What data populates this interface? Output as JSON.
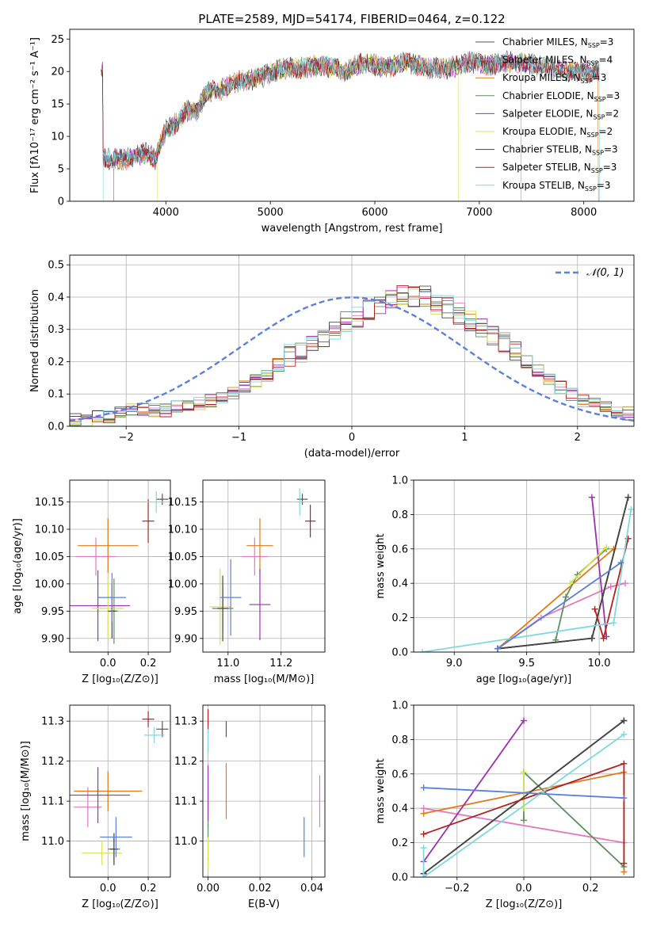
{
  "figure": {
    "title": "PLATE=2589, MJD=54174, FIBERID=0464, z=0.122"
  },
  "colors": {
    "Chabrier MILES": "#555555",
    "Salpeter MILES": "#e377c2",
    "Kroupa MILES": "#e07b1a",
    "Chabrier ELODIE": "#5d8f5d",
    "Salpeter ELODIE": "#9b30b0",
    "Kroupa ELODIE": "#d7e35a",
    "Chabrier STELIB": "#444444",
    "Salpeter STELIB": "#b22222",
    "Kroupa STELIB": "#7fd8df",
    "blue": "#5b7fdc"
  },
  "chart_data": [
    {
      "id": "spectrum",
      "type": "line",
      "title": "PLATE=2589, MJD=54174, FIBERID=0464, z=0.122",
      "xlabel": "wavelength [Angstrom, rest frame]",
      "ylabel": "Flux [fλ10⁻¹⁷ erg cm⁻² s⁻¹ A⁻¹]",
      "xlim": [
        3080,
        8480
      ],
      "ylim": [
        0,
        26.5
      ],
      "xticks": [
        4000,
        5000,
        6000,
        7000,
        8000
      ],
      "yticks": [
        0,
        5,
        10,
        15,
        20,
        25
      ],
      "legend_position": "top-right",
      "series": [
        {
          "name": "Chabrier MILES, N$_{SSP}$=3"
        },
        {
          "name": "Salpeter MILES, N$_{SSP}$=4"
        },
        {
          "name": "Kroupa MILES, N$_{SSP}$=3"
        },
        {
          "name": "Chabrier ELODIE, N$_{SSP}$=3"
        },
        {
          "name": "Salpeter ELODIE, N$_{SSP}$=2"
        },
        {
          "name": "Kroupa ELODIE, N$_{SSP}$=2"
        },
        {
          "name": "Chabrier STELIB, N$_{SSP}$=3"
        },
        {
          "name": "Salpeter STELIB, N$_{SSP}$=3"
        },
        {
          "name": "Kroupa STELIB, N$_{SSP}$=3"
        }
      ],
      "envelope": {
        "x": [
          3400,
          3600,
          3800,
          3900,
          4000,
          4100,
          4200,
          4300,
          4400,
          4500,
          4700,
          4900,
          5100,
          5300,
          5500,
          5700,
          5900,
          6100,
          6300,
          6500,
          6700,
          6900,
          7100,
          7300,
          7500,
          7700,
          7900,
          8150
        ],
        "y": [
          6.5,
          6.5,
          7.5,
          6.5,
          11.0,
          12.0,
          14.0,
          14.0,
          17.0,
          17.0,
          18.5,
          19.0,
          20.5,
          20.5,
          21.0,
          20.0,
          21.5,
          20.5,
          21.5,
          20.5,
          20.5,
          21.5,
          21.0,
          21.5,
          21.0,
          20.5,
          20.0,
          20.0
        ]
      }
    },
    {
      "id": "residuals",
      "type": "histogram",
      "xlabel": "(data-model)/error",
      "ylabel": "Normed distribution",
      "xlim": [
        -2.5,
        2.5
      ],
      "ylim": [
        0,
        0.53
      ],
      "xticks": [
        -2,
        -1,
        0,
        1,
        2
      ],
      "yticks": [
        0.0,
        0.1,
        0.2,
        0.3,
        0.4,
        0.5
      ],
      "reference_curve": {
        "name": "N(0,1)",
        "mean": 0,
        "sigma": 1
      },
      "legend_position": "top-right",
      "bins": {
        "start": -2.5,
        "width": 0.1,
        "count": 50
      },
      "base_heights": [
        0.02,
        0.02,
        0.03,
        0.03,
        0.04,
        0.05,
        0.05,
        0.05,
        0.05,
        0.06,
        0.06,
        0.07,
        0.08,
        0.09,
        0.1,
        0.12,
        0.14,
        0.16,
        0.19,
        0.22,
        0.23,
        0.25,
        0.27,
        0.29,
        0.32,
        0.34,
        0.36,
        0.37,
        0.39,
        0.41,
        0.4,
        0.4,
        0.38,
        0.37,
        0.35,
        0.33,
        0.31,
        0.28,
        0.26,
        0.23,
        0.2,
        0.17,
        0.15,
        0.12,
        0.1,
        0.08,
        0.07,
        0.06,
        0.05,
        0.04
      ]
    },
    {
      "id": "age-vs-Z",
      "type": "errorbar",
      "xlabel": "Z [log₁₀(Z/Z⊙)]",
      "ylabel": "age  [log₁₀(age/yr)]",
      "xlim": [
        -0.19,
        0.31
      ],
      "ylim": [
        9.875,
        10.19
      ],
      "xticks": [
        0.0,
        0.2
      ],
      "yticks": [
        9.9,
        9.95,
        10.0,
        10.05,
        10.1,
        10.15
      ],
      "points": [
        {
          "series": "Chabrier MILES",
          "x": 0.27,
          "y": 10.155,
          "xerr": 0.03,
          "yerr": 0.01
        },
        {
          "series": "Salpeter MILES",
          "x": -0.06,
          "y": 10.05,
          "xerr": 0.1,
          "yerr": 0.035
        },
        {
          "series": "Kroupa MILES",
          "x": 0.0,
          "y": 10.07,
          "xerr": 0.15,
          "yerr": 0.05
        },
        {
          "series": "Chabrier ELODIE",
          "x": 0.03,
          "y": 9.95,
          "xerr": 0.02,
          "yerr": 0.06
        },
        {
          "series": "Salpeter ELODIE",
          "x": -0.05,
          "y": 9.96,
          "xerr": 0.16,
          "yerr": 0.065
        },
        {
          "series": "Kroupa ELODIE",
          "x": 0.0,
          "y": 9.955,
          "xerr": 0.08,
          "yerr": 0.055
        },
        {
          "series": "Chabrier STELIB",
          "x": 0.02,
          "y": 9.95,
          "xerr": 0.02,
          "yerr": 0.05
        },
        {
          "series": "Salpeter STELIB",
          "x": 0.2,
          "y": 10.115,
          "xerr": 0.03,
          "yerr": 0.04
        },
        {
          "series": "Kroupa STELIB",
          "x": 0.24,
          "y": 10.15,
          "xerr": 0.05,
          "yerr": 0.02
        },
        {
          "series": "blue",
          "x": 0.02,
          "y": 9.975,
          "xerr": 0.07,
          "yerr": 0.045
        }
      ]
    },
    {
      "id": "age-vs-mass",
      "type": "errorbar",
      "xlabel": "mass [log₁₀(M/M⊙)]",
      "ylabel": "",
      "xlim": [
        10.905,
        11.365
      ],
      "ylim": [
        9.875,
        10.19
      ],
      "xticks": [
        11.0,
        11.2
      ],
      "yticks": [
        9.9,
        9.95,
        10.0,
        10.05,
        10.1,
        10.15
      ],
      "points": [
        {
          "series": "Chabrier MILES",
          "x": 11.28,
          "y": 10.155,
          "xerr": 0.02,
          "yerr": 0.01
        },
        {
          "series": "Salpeter MILES",
          "x": 11.1,
          "y": 10.05,
          "xerr": 0.05,
          "yerr": 0.035
        },
        {
          "series": "Kroupa MILES",
          "x": 11.12,
          "y": 10.07,
          "xerr": 0.05,
          "yerr": 0.05
        },
        {
          "series": "Chabrier ELODIE",
          "x": 10.98,
          "y": 9.955,
          "xerr": 0.04,
          "yerr": 0.04
        },
        {
          "series": "Salpeter ELODIE",
          "x": 11.12,
          "y": 9.962,
          "xerr": 0.04,
          "yerr": 0.065
        },
        {
          "series": "Kroupa ELODIE",
          "x": 10.97,
          "y": 9.958,
          "xerr": 0.04,
          "yerr": 0.07
        },
        {
          "series": "Chabrier STELIB",
          "x": 10.98,
          "y": 9.955,
          "xerr": 0.02,
          "yerr": 0.06
        },
        {
          "series": "Salpeter STELIB",
          "x": 11.31,
          "y": 10.115,
          "xerr": 0.02,
          "yerr": 0.03
        },
        {
          "series": "Kroupa STELIB",
          "x": 11.27,
          "y": 10.15,
          "xerr": 0.02,
          "yerr": 0.025
        },
        {
          "series": "blue",
          "x": 11.01,
          "y": 9.975,
          "xerr": 0.04,
          "yerr": 0.07
        }
      ]
    },
    {
      "id": "massweight-vs-age",
      "type": "line",
      "xlabel": "age  [log₁₀(age/yr)]",
      "ylabel": "mass weight",
      "xlim": [
        8.72,
        10.24
      ],
      "ylim": [
        0,
        1.0
      ],
      "xticks": [
        9.0,
        9.5,
        10.0
      ],
      "yticks": [
        0.0,
        0.2,
        0.4,
        0.6,
        0.8,
        1.0
      ],
      "series": [
        {
          "series": "Chabrier MILES",
          "x": [
            9.3,
            9.95,
            10.2
          ],
          "y": [
            0.02,
            0.08,
            0.9
          ]
        },
        {
          "series": "Salpeter MILES",
          "x": [
            9.3,
            9.6,
            10.08,
            10.18
          ],
          "y": [
            0.02,
            0.2,
            0.38,
            0.4
          ]
        },
        {
          "series": "Kroupa MILES",
          "x": [
            9.3,
            10.1
          ],
          "y": [
            0.02,
            0.6
          ]
        },
        {
          "series": "Chabrier ELODIE",
          "x": [
            9.7,
            9.77,
            9.85,
            10.05
          ],
          "y": [
            0.07,
            0.32,
            0.45,
            0.6
          ]
        },
        {
          "series": "Salpeter ELODIE",
          "x": [
            9.95,
            10.05
          ],
          "y": [
            0.9,
            0.09
          ]
        },
        {
          "series": "Kroupa ELODIE",
          "x": [
            9.8,
            10.05
          ],
          "y": [
            0.4,
            0.61
          ]
        },
        {
          "series": "Chabrier STELIB",
          "x": [
            9.3,
            9.95,
            10.2
          ],
          "y": [
            0.02,
            0.08,
            0.9
          ]
        },
        {
          "series": "Salpeter STELIB",
          "x": [
            9.97,
            10.03,
            10.2
          ],
          "y": [
            0.25,
            0.08,
            0.66
          ]
        },
        {
          "series": "Kroupa STELIB",
          "x": [
            8.78,
            10.1,
            10.22
          ],
          "y": [
            0.0,
            0.17,
            0.83
          ]
        },
        {
          "series": "blue",
          "x": [
            9.3,
            10.15
          ],
          "y": [
            0.02,
            0.52
          ]
        }
      ]
    },
    {
      "id": "mass-vs-Z",
      "type": "errorbar",
      "xlabel": "Z [log₁₀(Z/Z⊙)]",
      "ylabel": "mass [log₁₀(M/M⊙)]",
      "xlim": [
        -0.19,
        0.31
      ],
      "ylim": [
        10.91,
        11.34
      ],
      "xticks": [
        0.0,
        0.2
      ],
      "yticks": [
        11.0,
        11.1,
        11.2,
        11.3
      ],
      "points": [
        {
          "series": "Chabrier MILES",
          "x": 0.27,
          "y": 11.28,
          "xerr": 0.03,
          "yerr": 0.02
        },
        {
          "series": "Salpeter MILES",
          "x": -0.1,
          "y": 11.085,
          "xerr": 0.07,
          "yerr": 0.05
        },
        {
          "series": "Kroupa MILES",
          "x": 0.0,
          "y": 11.125,
          "xerr": 0.17,
          "yerr": 0.05
        },
        {
          "series": "Chabrier ELODIE",
          "x": 0.03,
          "y": 10.98,
          "xerr": 0.03,
          "yerr": 0.03
        },
        {
          "series": "Salpeter ELODIE",
          "x": -0.05,
          "y": 11.115,
          "xerr": 0.16,
          "yerr": 0.07
        },
        {
          "series": "Kroupa ELODIE",
          "x": -0.03,
          "y": 10.97,
          "xerr": 0.1,
          "yerr": 0.03
        },
        {
          "series": "Chabrier STELIB",
          "x": 0.03,
          "y": 10.98,
          "xerr": 0.02,
          "yerr": 0.04
        },
        {
          "series": "Salpeter STELIB",
          "x": 0.2,
          "y": 11.305,
          "xerr": 0.03,
          "yerr": 0.02
        },
        {
          "series": "Kroupa STELIB",
          "x": 0.23,
          "y": 11.265,
          "xerr": 0.05,
          "yerr": 0.02
        },
        {
          "series": "blue",
          "x": 0.04,
          "y": 11.01,
          "xerr": 0.08,
          "yerr": 0.05
        }
      ]
    },
    {
      "id": "mass-vs-EBV",
      "type": "errorbar",
      "xlabel": "E(B-V)",
      "ylabel": "",
      "xlim": [
        -0.002,
        0.045
      ],
      "ylim": [
        10.91,
        11.34
      ],
      "xticks": [
        0.0,
        0.02,
        0.04
      ],
      "yticks": [
        11.0,
        11.1,
        11.2,
        11.3
      ],
      "points": [
        {
          "series": "Chabrier MILES",
          "x": 0.007,
          "y": 11.28,
          "xerr": 0.0,
          "yerr": 0.02
        },
        {
          "series": "Salpeter MILES",
          "x": 0.0,
          "y": 11.085,
          "xerr": 0.0,
          "yerr": 0.05
        },
        {
          "series": "Kroupa MILES",
          "x": 0.007,
          "y": 11.125,
          "xerr": 0.0,
          "yerr": 0.07
        },
        {
          "series": "Chabrier ELODIE",
          "x": 0.0,
          "y": 11.0,
          "xerr": 0.0,
          "yerr": 0.05
        },
        {
          "series": "Salpeter ELODIE",
          "x": 0.0,
          "y": 11.12,
          "xerr": 0.0,
          "yerr": 0.07
        },
        {
          "series": "Kroupa ELODIE",
          "x": 0.0,
          "y": 10.97,
          "xerr": 0.0,
          "yerr": 0.04
        },
        {
          "series": "Salpeter STELIB",
          "x": 0.0,
          "y": 11.3,
          "xerr": 0.0,
          "yerr": 0.03
        },
        {
          "series": "Kroupa STELIB",
          "x": 0.0,
          "y": 11.25,
          "xerr": 0.0,
          "yerr": 0.03
        },
        {
          "series": "blue",
          "x": 0.037,
          "y": 11.01,
          "xerr": 0.0,
          "yerr": 0.05
        },
        {
          "series": "Salpeter MILES",
          "x": 0.043,
          "y": 11.1,
          "xerr": 0.0,
          "yerr": 0.065
        }
      ]
    },
    {
      "id": "massweight-vs-Z",
      "type": "line",
      "xlabel": "Z [log₁₀(Z/Z⊙)]",
      "ylabel": "mass weight",
      "xlim": [
        -0.33,
        0.33
      ],
      "ylim": [
        0,
        1.0
      ],
      "xticks": [
        -0.2,
        0.0,
        0.2
      ],
      "yticks": [
        0.0,
        0.2,
        0.4,
        0.6,
        0.8,
        1.0
      ],
      "series": [
        {
          "series": "Chabrier MILES",
          "x": [
            -0.3,
            0.3
          ],
          "y": [
            0.02,
            0.91
          ]
        },
        {
          "series": "Salpeter MILES",
          "x": [
            -0.3,
            0.3
          ],
          "y": [
            0.4,
            0.2
          ]
        },
        {
          "series": "Kroupa MILES",
          "x": [
            -0.3,
            0.3,
            0.3
          ],
          "y": [
            0.37,
            0.61,
            0.03
          ]
        },
        {
          "series": "Chabrier ELODIE",
          "x": [
            0.0,
            0.0,
            0.3
          ],
          "y": [
            0.33,
            0.61,
            0.06
          ]
        },
        {
          "series": "Salpeter ELODIE",
          "x": [
            -0.3,
            0.0
          ],
          "y": [
            0.09,
            0.91
          ]
        },
        {
          "series": "Kroupa ELODIE",
          "x": [
            0.0,
            0.0
          ],
          "y": [
            0.4,
            0.61
          ]
        },
        {
          "series": "Chabrier STELIB",
          "x": [
            -0.3,
            0.3
          ],
          "y": [
            0.02,
            0.91
          ]
        },
        {
          "series": "Salpeter STELIB",
          "x": [
            -0.3,
            0.3,
            0.3
          ],
          "y": [
            0.25,
            0.66,
            0.08
          ]
        },
        {
          "series": "Kroupa STELIB",
          "x": [
            -0.3,
            -0.3,
            0.3
          ],
          "y": [
            0.17,
            0.0,
            0.83
          ]
        },
        {
          "series": "blue",
          "x": [
            -0.3,
            0.3
          ],
          "y": [
            0.52,
            0.46
          ]
        }
      ]
    }
  ]
}
